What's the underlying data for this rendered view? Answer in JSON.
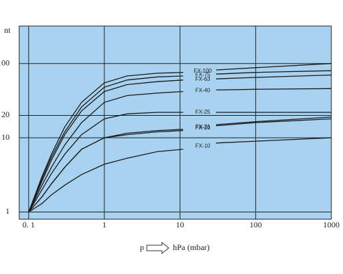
{
  "chart_data": {
    "type": "line",
    "log_x": true,
    "log_y": true,
    "grid": true,
    "y_label": "nt",
    "x_label_prefix": "p",
    "x_label": "hPa (mbar)",
    "background": "#a9d2f0",
    "x": [
      0.1,
      0.15,
      0.2,
      0.3,
      0.5,
      1,
      2,
      5,
      11,
      20,
      30,
      100,
      1000
    ],
    "xlim": [
      0.075,
      1000
    ],
    "ylim": [
      0.8,
      320
    ],
    "xticks": [
      {
        "value": 0.1,
        "label": "0. 1"
      },
      1,
      10,
      100,
      1000
    ],
    "yticks": [
      1,
      10,
      20,
      100
    ],
    "series": [
      {
        "name": "FX-100",
        "color": "#1a1a1a",
        "values": [
          1,
          3,
          6,
          14,
          30,
          55,
          68,
          74,
          76,
          null,
          82,
          88,
          100
        ]
      },
      {
        "name": "FX-75",
        "color": "#1a1a1a",
        "values": [
          1,
          2.8,
          5.5,
          12,
          26,
          48,
          60,
          66,
          68,
          null,
          72,
          76,
          80
        ]
      },
      {
        "name": "FX-63",
        "color": "#1a1a1a",
        "values": [
          1,
          2.6,
          5,
          11,
          23,
          42,
          52,
          57,
          60,
          null,
          62,
          65,
          70
        ]
      },
      {
        "name": "FX-40",
        "color": "#1a1a1a",
        "values": [
          1,
          2.3,
          4,
          8,
          16,
          30,
          37,
          40,
          42,
          null,
          44,
          45,
          46
        ]
      },
      {
        "name": "FX-25",
        "color": "#1a1a1a",
        "values": [
          1,
          2,
          3.3,
          6,
          11,
          18,
          21,
          22,
          22,
          null,
          22,
          22,
          22
        ]
      },
      {
        "name": "FX-21",
        "color": "#1a1a1a",
        "values": [
          1,
          1.6,
          2.4,
          4,
          7,
          10,
          11.5,
          12.5,
          13,
          null,
          15,
          16.5,
          19
        ]
      },
      {
        "name": "FX-20",
        "color": "#1a1a1a",
        "values": [
          1,
          1.6,
          2.4,
          4,
          7,
          10,
          11,
          12,
          12.5,
          null,
          14.5,
          16,
          18
        ]
      },
      {
        "name": "FX-10",
        "color": "#1a1a1a",
        "values": [
          1,
          1.3,
          1.7,
          2.3,
          3.2,
          4.4,
          5.3,
          6.5,
          7,
          null,
          8.5,
          9,
          10
        ]
      }
    ]
  }
}
